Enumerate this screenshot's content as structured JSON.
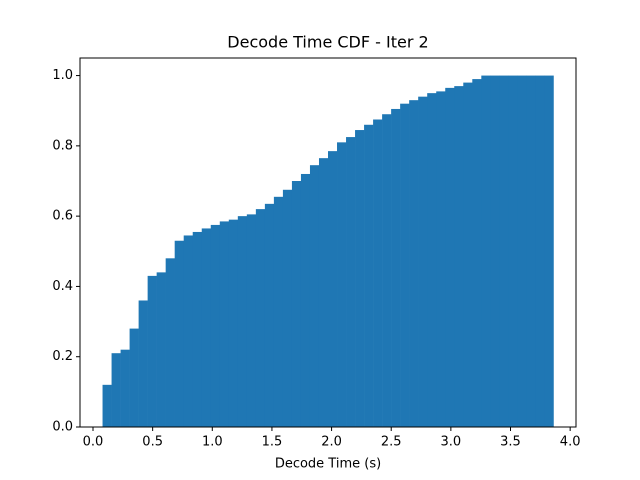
{
  "chart_data": {
    "type": "histogram",
    "title": "Decode Time CDF - Iter 2",
    "xlabel": "Decode Time (s)",
    "color": "#1f77b4",
    "bins": [
      0.08,
      0.1556,
      0.2312,
      0.3068,
      0.3824,
      0.458,
      0.5336,
      0.6092,
      0.6848,
      0.7604,
      0.836,
      0.9116,
      0.9872,
      1.0628,
      1.1384,
      1.214,
      1.2896,
      1.3652,
      1.4408,
      1.5164,
      1.592,
      1.6676,
      1.7432,
      1.8188,
      1.8944,
      1.97,
      2.0456,
      2.1212,
      2.1968,
      2.2724,
      2.348,
      2.4236,
      2.4992,
      2.5748,
      2.6504,
      2.726,
      2.8016,
      2.8772,
      2.9528,
      3.0284,
      3.104,
      3.1796,
      3.2552,
      3.3308,
      3.4064,
      3.482,
      3.5576,
      3.6332,
      3.7088,
      3.7844,
      3.86
    ],
    "values": [
      0.12,
      0.21,
      0.22,
      0.28,
      0.36,
      0.43,
      0.44,
      0.48,
      0.53,
      0.545,
      0.555,
      0.565,
      0.575,
      0.585,
      0.59,
      0.6,
      0.605,
      0.62,
      0.635,
      0.655,
      0.675,
      0.7,
      0.72,
      0.745,
      0.765,
      0.785,
      0.81,
      0.825,
      0.845,
      0.86,
      0.875,
      0.89,
      0.905,
      0.92,
      0.93,
      0.94,
      0.95,
      0.955,
      0.965,
      0.97,
      0.98,
      0.99,
      1.0,
      1.0,
      1.0,
      1.0,
      1.0,
      1.0,
      1.0,
      1.0
    ],
    "xlim": [
      -0.109,
      4.049
    ],
    "ylim": [
      0,
      1.05
    ],
    "xticks": [
      {
        "value": 0,
        "label": "0.0"
      },
      {
        "value": 0.5,
        "label": "0.5"
      },
      {
        "value": 1,
        "label": "1.0"
      },
      {
        "value": 1.5,
        "label": "1.5"
      },
      {
        "value": 2,
        "label": "2.0"
      },
      {
        "value": 2.5,
        "label": "2.5"
      },
      {
        "value": 3,
        "label": "3.0"
      },
      {
        "value": 3.5,
        "label": "3.5"
      },
      {
        "value": 4,
        "label": "4.0"
      }
    ],
    "yticks": [
      {
        "value": 0,
        "label": "0.0"
      },
      {
        "value": 0.2,
        "label": "0.2"
      },
      {
        "value": 0.4,
        "label": "0.4"
      },
      {
        "value": 0.6,
        "label": "0.6"
      },
      {
        "value": 0.8,
        "label": "0.8"
      },
      {
        "value": 1,
        "label": "1.0"
      }
    ],
    "grid": false
  }
}
